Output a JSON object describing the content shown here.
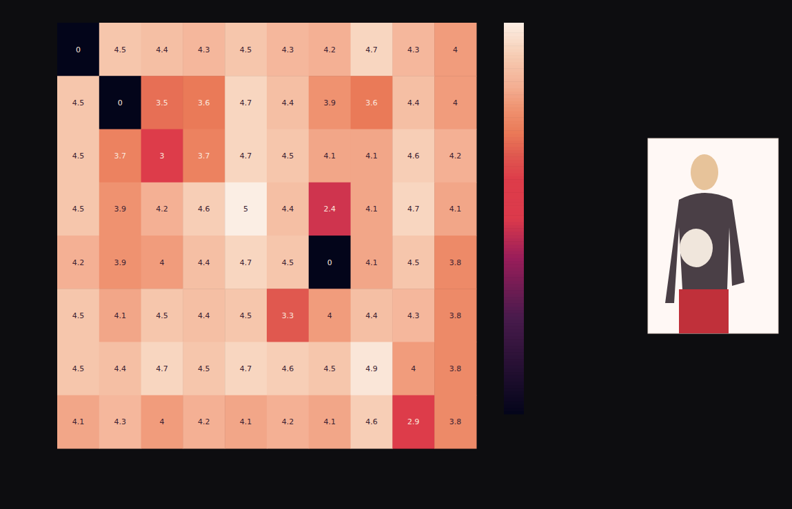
{
  "chart_data": {
    "type": "heatmap",
    "tick_labels": false,
    "data_labels": true,
    "values": [
      [
        0,
        4.5,
        4.4,
        4.3,
        4.5,
        4.3,
        4.2,
        4.7,
        4.3,
        4
      ],
      [
        4.5,
        0,
        3.5,
        3.6,
        4.7,
        4.4,
        3.9,
        3.6,
        4.4,
        4
      ],
      [
        4.5,
        3.7,
        3,
        3.7,
        4.7,
        4.5,
        4.1,
        4.1,
        4.6,
        4.2
      ],
      [
        4.5,
        3.9,
        4.2,
        4.6,
        5,
        4.4,
        2.4,
        4.1,
        4.7,
        4.1
      ],
      [
        4.2,
        3.9,
        4,
        4.4,
        4.7,
        4.5,
        0,
        4.1,
        4.5,
        3.8
      ],
      [
        4.5,
        4.1,
        4.5,
        4.4,
        4.5,
        3.3,
        4,
        4.4,
        4.3,
        3.8
      ],
      [
        4.5,
        4.4,
        4.7,
        4.5,
        4.7,
        4.6,
        4.5,
        4.9,
        4,
        3.8
      ],
      [
        4.1,
        4.3,
        4,
        4.2,
        4.1,
        4.2,
        4.1,
        4.6,
        2.9,
        3.8
      ]
    ],
    "colorbar": {
      "range": [
        0,
        5
      ]
    }
  }
}
